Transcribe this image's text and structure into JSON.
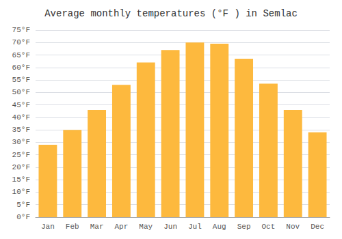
{
  "chart_data": {
    "type": "bar",
    "title": "Average monthly temperatures (°F ) in Semlac",
    "categories": [
      "Jan",
      "Feb",
      "Mar",
      "Apr",
      "May",
      "Jun",
      "Jul",
      "Aug",
      "Sep",
      "Oct",
      "Nov",
      "Dec"
    ],
    "values": [
      29,
      35,
      43,
      53,
      62,
      67,
      70,
      69.5,
      63.5,
      53.5,
      43,
      34
    ],
    "color": "#FDB93E",
    "ylim": [
      0,
      75
    ],
    "yticks": [
      {
        "value": 0,
        "label": "0°F"
      },
      {
        "value": 5,
        "label": "5°F"
      },
      {
        "value": 10,
        "label": "10°F"
      },
      {
        "value": 15,
        "label": "15°F"
      },
      {
        "value": 20,
        "label": "20°F"
      },
      {
        "value": 25,
        "label": "25°F"
      },
      {
        "value": 30,
        "label": "30°F"
      },
      {
        "value": 35,
        "label": "35°F"
      },
      {
        "value": 40,
        "label": "40°F"
      },
      {
        "value": 45,
        "label": "45°F"
      },
      {
        "value": 50,
        "label": "50°F"
      },
      {
        "value": 55,
        "label": "55°F"
      },
      {
        "value": 60,
        "label": "60°F"
      },
      {
        "value": 65,
        "label": "65°F"
      },
      {
        "value": 70,
        "label": "70°F"
      },
      {
        "value": 75,
        "label": "75°F"
      }
    ],
    "grid": true
  }
}
